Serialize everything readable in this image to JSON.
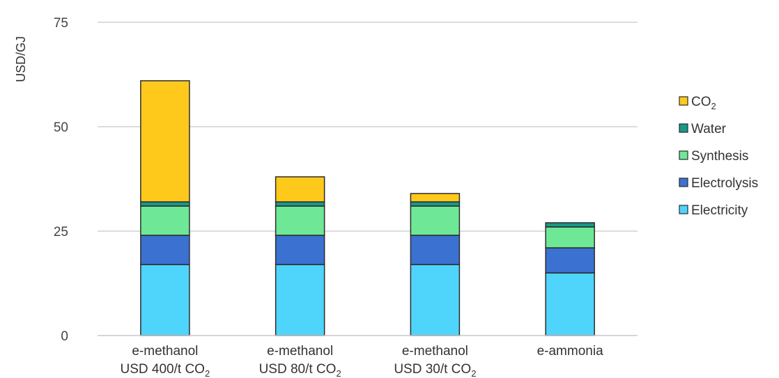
{
  "chart_data": {
    "type": "bar",
    "stacked": true,
    "ylabel": "USD/GJ",
    "ylim": [
      0,
      75
    ],
    "yticks": [
      "0",
      "25",
      "50",
      "75"
    ],
    "ytick_values": [
      0,
      25,
      50,
      75
    ],
    "grid": true,
    "legend_position": "right",
    "categories": [
      {
        "line1": "e-methanol",
        "line2": "USD 400/t CO",
        "sub": "2"
      },
      {
        "line1": "e-methanol",
        "line2": "USD 80/t CO",
        "sub": "2"
      },
      {
        "line1": "e-methanol",
        "line2": "USD 30/t CO",
        "sub": "2"
      },
      {
        "line1": "e-ammonia",
        "line2": "",
        "sub": ""
      }
    ],
    "series": [
      {
        "name": "Electricity",
        "color": "#4fd4fb",
        "values": [
          17,
          17,
          17,
          15
        ]
      },
      {
        "name": "Electrolysis",
        "color": "#3b72d1",
        "values": [
          7,
          7,
          7,
          6
        ]
      },
      {
        "name": "Synthesis",
        "color": "#6ee896",
        "values": [
          7,
          7,
          7,
          5
        ]
      },
      {
        "name": "Water",
        "color": "#179a89",
        "values": [
          1,
          1,
          1,
          1
        ]
      },
      {
        "name": "CO",
        "name_sub": "2",
        "color": "#ffc91c",
        "values": [
          29,
          6,
          2,
          0
        ]
      }
    ],
    "legend_order": [
      4,
      3,
      2,
      1,
      0
    ]
  }
}
